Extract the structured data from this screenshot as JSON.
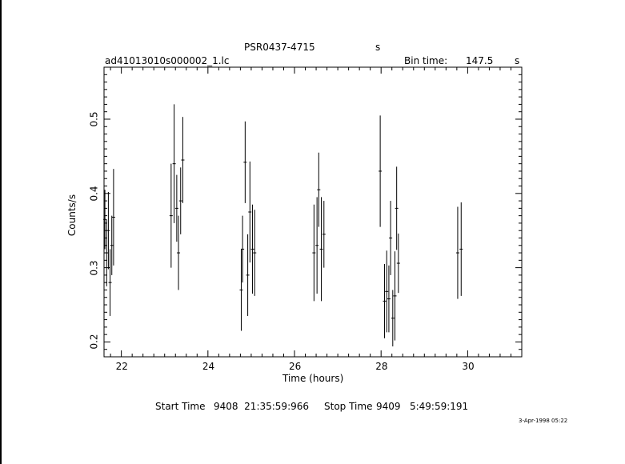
{
  "header": {
    "source": "PSR0437-4715",
    "mode": "s",
    "filename": "ad41013010s000002_1.lc",
    "bin_label": "Bin time:",
    "bin_value": "147.5",
    "bin_unit": "s"
  },
  "footer": {
    "start_label": "Start Time",
    "start_value": "9408  21:35:59:966",
    "stop_label": "Stop Time",
    "stop_value": "9409   5:49:59:191",
    "date_stamp": "3-Apr-1998 05:22"
  },
  "chart_data": {
    "type": "scatter",
    "xlabel": "Time (hours)",
    "ylabel": "Counts/s",
    "xlim": [
      21.6,
      31.25
    ],
    "ylim": [
      0.18,
      0.57
    ],
    "xticks": [
      22,
      24,
      26,
      28,
      30
    ],
    "xtick_labels": [
      "22",
      "24",
      "26",
      "28",
      "30"
    ],
    "yticks": [
      0.2,
      0.3,
      0.4,
      0.5
    ],
    "ytick_labels": [
      "0.2",
      "0.3",
      "0.4",
      "0.5"
    ],
    "grid": false,
    "points": [
      {
        "x": 21.62,
        "y": 0.365,
        "err": 0.04
      },
      {
        "x": 21.66,
        "y": 0.32,
        "err": 0.045
      },
      {
        "x": 21.7,
        "y": 0.35,
        "err": 0.052
      },
      {
        "x": 21.74,
        "y": 0.28,
        "err": 0.045
      },
      {
        "x": 21.78,
        "y": 0.33,
        "err": 0.04
      },
      {
        "x": 21.82,
        "y": 0.368,
        "err": 0.065
      },
      {
        "x": 23.15,
        "y": 0.37,
        "err": 0.07
      },
      {
        "x": 23.22,
        "y": 0.44,
        "err": 0.08
      },
      {
        "x": 23.28,
        "y": 0.38,
        "err": 0.045
      },
      {
        "x": 23.32,
        "y": 0.32,
        "err": 0.05
      },
      {
        "x": 23.37,
        "y": 0.39,
        "err": 0.045
      },
      {
        "x": 23.42,
        "y": 0.445,
        "err": 0.058
      },
      {
        "x": 24.77,
        "y": 0.27,
        "err": 0.055
      },
      {
        "x": 24.8,
        "y": 0.325,
        "err": 0.045
      },
      {
        "x": 24.86,
        "y": 0.442,
        "err": 0.055
      },
      {
        "x": 24.92,
        "y": 0.29,
        "err": 0.055
      },
      {
        "x": 24.97,
        "y": 0.375,
        "err": 0.068
      },
      {
        "x": 25.03,
        "y": 0.325,
        "err": 0.06
      },
      {
        "x": 25.08,
        "y": 0.32,
        "err": 0.058
      },
      {
        "x": 26.45,
        "y": 0.32,
        "err": 0.065
      },
      {
        "x": 26.52,
        "y": 0.33,
        "err": 0.065
      },
      {
        "x": 26.56,
        "y": 0.405,
        "err": 0.05
      },
      {
        "x": 26.62,
        "y": 0.325,
        "err": 0.07
      },
      {
        "x": 26.68,
        "y": 0.345,
        "err": 0.045
      },
      {
        "x": 27.98,
        "y": 0.43,
        "err": 0.075
      },
      {
        "x": 28.08,
        "y": 0.255,
        "err": 0.05
      },
      {
        "x": 28.13,
        "y": 0.268,
        "err": 0.055
      },
      {
        "x": 28.18,
        "y": 0.258,
        "err": 0.045
      },
      {
        "x": 28.22,
        "y": 0.34,
        "err": 0.05
      },
      {
        "x": 28.27,
        "y": 0.232,
        "err": 0.038
      },
      {
        "x": 28.32,
        "y": 0.262,
        "err": 0.06
      },
      {
        "x": 28.36,
        "y": 0.38,
        "err": 0.056
      },
      {
        "x": 28.4,
        "y": 0.306,
        "err": 0.04
      },
      {
        "x": 29.77,
        "y": 0.32,
        "err": 0.062
      },
      {
        "x": 29.85,
        "y": 0.325,
        "err": 0.063
      }
    ]
  }
}
